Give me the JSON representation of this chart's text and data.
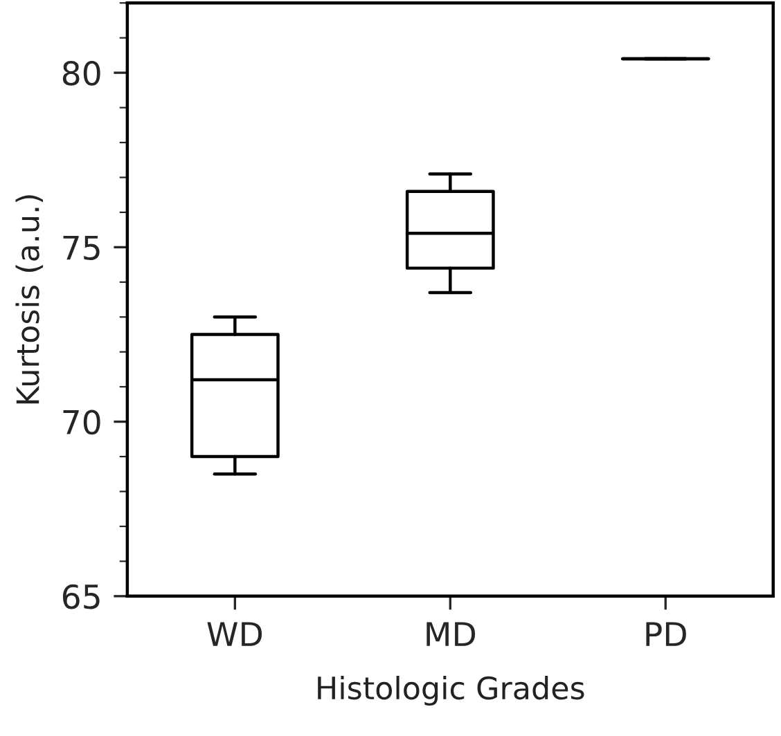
{
  "chart_data": {
    "type": "box",
    "xlabel": "Histologic Grades",
    "ylabel": "Kurtosis (a.u.)",
    "categories": [
      "WD",
      "MD",
      "PD"
    ],
    "boxes": [
      {
        "low": 68.5,
        "q1": 69.0,
        "median": 71.2,
        "q3": 72.5,
        "high": 73.0
      },
      {
        "low": 73.7,
        "q1": 74.4,
        "median": 75.4,
        "q3": 76.6,
        "high": 77.1
      },
      {
        "low": 80.4,
        "q1": 80.4,
        "median": 80.4,
        "q3": 80.4,
        "high": 80.4
      }
    ],
    "ylim": [
      65,
      82
    ],
    "yticks": [
      65,
      70,
      75,
      80
    ],
    "grid": false
  }
}
